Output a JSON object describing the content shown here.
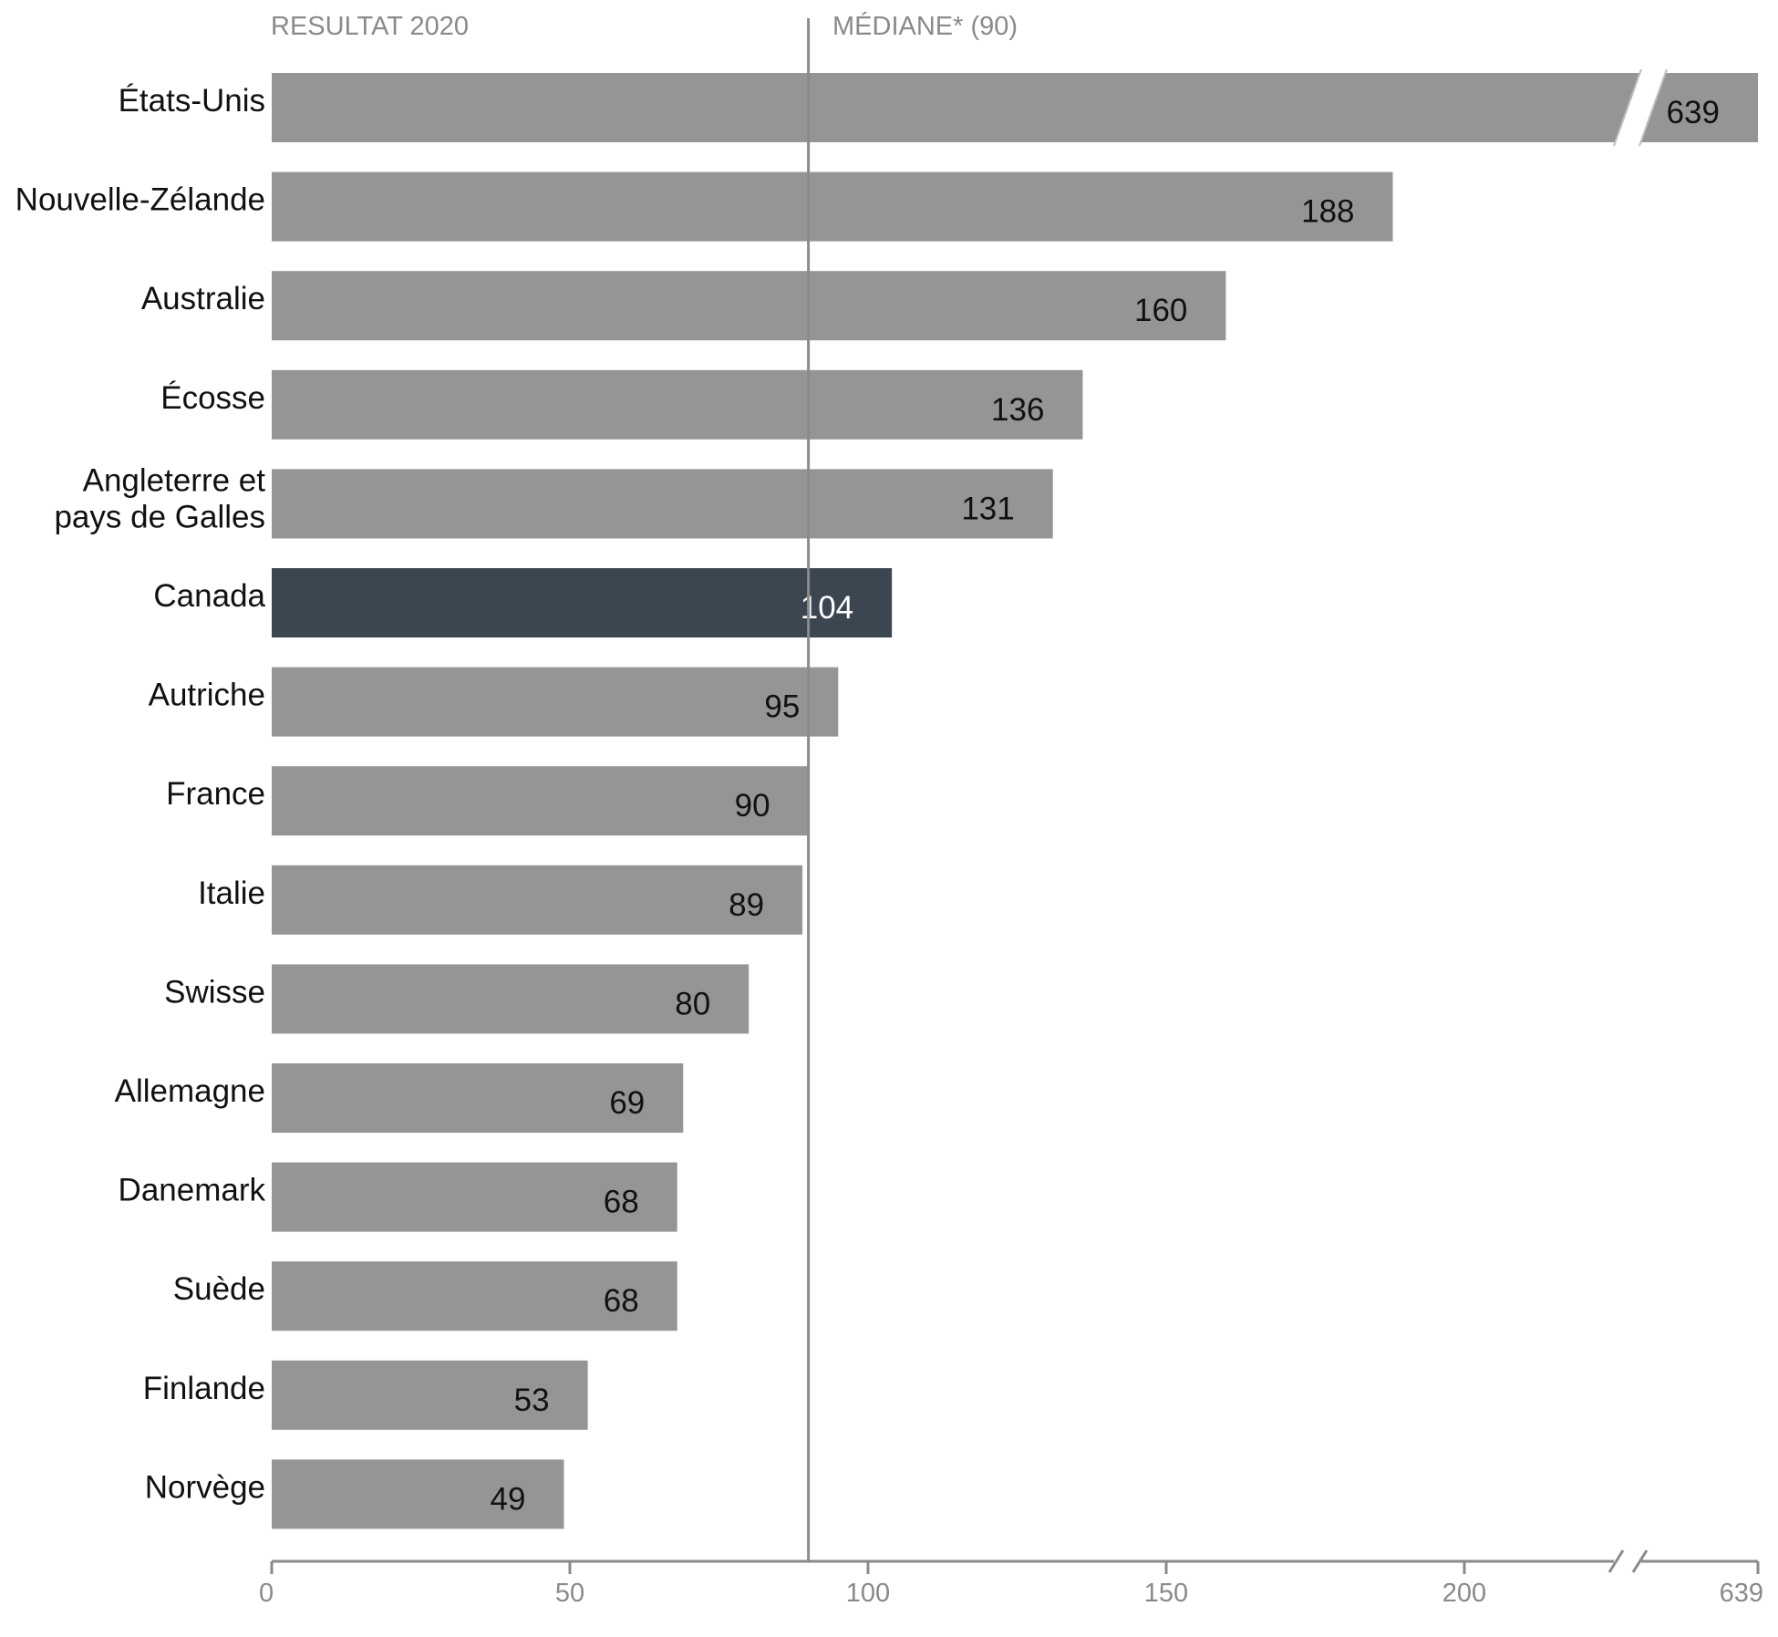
{
  "chart_data": {
    "type": "bar",
    "orientation": "horizontal",
    "header_left": "RESULTAT 2020",
    "median": {
      "label": "MÉDIANE* (90)",
      "value": 90
    },
    "categories": [
      [
        "États-Unis"
      ],
      [
        "Nouvelle-Zélande"
      ],
      [
        "Australie"
      ],
      [
        "Écosse"
      ],
      [
        "Angleterre et",
        "pays de Galles"
      ],
      [
        "Canada"
      ],
      [
        "Autriche"
      ],
      [
        "France"
      ],
      [
        "Italie"
      ],
      [
        "Swisse"
      ],
      [
        "Allemagne"
      ],
      [
        "Danemark"
      ],
      [
        "Suède"
      ],
      [
        "Finlande"
      ],
      [
        "Norvège"
      ]
    ],
    "values": [
      639,
      188,
      160,
      136,
      131,
      104,
      95,
      90,
      89,
      80,
      69,
      68,
      68,
      53,
      49
    ],
    "value_labels": [
      "639",
      "188",
      "160",
      "136",
      "131",
      "104",
      "95",
      "90",
      "89",
      "80",
      "69",
      "68",
      "68",
      "53",
      "49"
    ],
    "highlight": "Canada",
    "xlim": [
      0,
      250
    ],
    "axis_break": true,
    "x_ticks": [
      0,
      50,
      100,
      150,
      200
    ],
    "x_tick_labels": [
      "0",
      "50",
      "100",
      "150",
      "200",
      "639"
    ],
    "colors": {
      "bar": "#969595",
      "highlight": "#3c4651",
      "axis": "#8a8a8a",
      "label_dark": "#111111",
      "label_light": "#ffffff"
    }
  }
}
